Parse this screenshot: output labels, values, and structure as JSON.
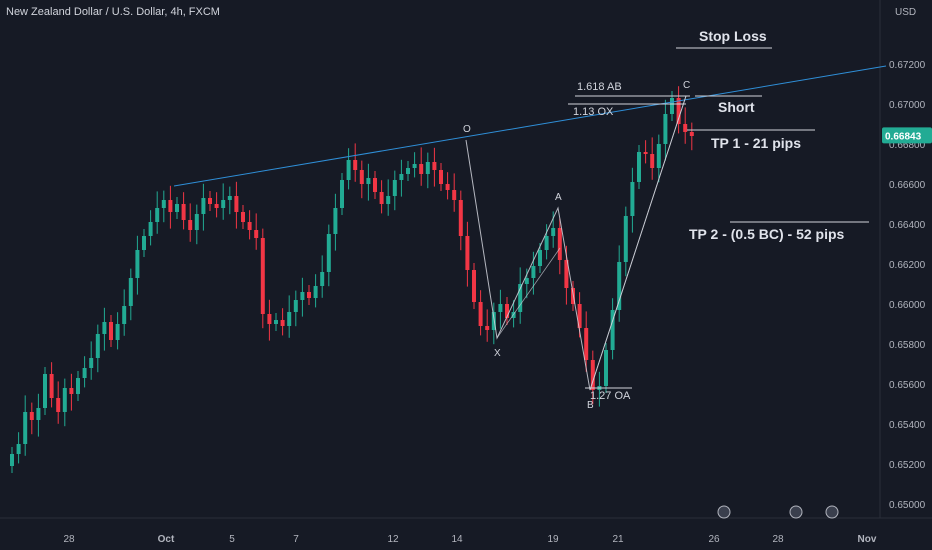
{
  "header": {
    "title": "New Zealand Dollar / U.S. Dollar, 4h, FXCM",
    "currency": "USD"
  },
  "colors": {
    "background": "#161a25",
    "up": "#22ab94",
    "down": "#f23645",
    "trendline": "#2962ff",
    "pattern": "#d1d4dc",
    "price_badge": "#22ab94",
    "text": "#d1d4dc"
  },
  "chart_data": {
    "type": "candlestick",
    "symbol": "NZD/USD",
    "timeframe": "4h",
    "ylim": [
      0.6496,
      0.6742
    ],
    "y_ticks": [
      "0.67200",
      "0.67000",
      "0.66800",
      "0.66600",
      "0.66400",
      "0.66200",
      "0.66000",
      "0.65800",
      "0.65600",
      "0.65400",
      "0.65200",
      "0.65000"
    ],
    "y_tick_values": [
      0.672,
      0.67,
      0.668,
      0.666,
      0.664,
      0.662,
      0.66,
      0.658,
      0.656,
      0.654,
      0.652,
      0.65
    ],
    "x_ticks": [
      "28",
      "Oct",
      "5",
      "7",
      "12",
      "14",
      "19",
      "21",
      "26",
      "28",
      "Nov"
    ],
    "last_price": "0.66843",
    "last_price_value": 0.66843,
    "closes": [
      0.6525,
      0.653,
      0.6546,
      0.6542,
      0.6548,
      0.6565,
      0.6553,
      0.6546,
      0.6558,
      0.6555,
      0.6563,
      0.6568,
      0.6573,
      0.6585,
      0.6591,
      0.6582,
      0.659,
      0.6599,
      0.6613,
      0.6627,
      0.6634,
      0.6641,
      0.6648,
      0.6652,
      0.6646,
      0.665,
      0.6642,
      0.6637,
      0.6645,
      0.6653,
      0.665,
      0.6648,
      0.6652,
      0.6654,
      0.6646,
      0.6641,
      0.6637,
      0.6633,
      0.6595,
      0.659,
      0.6592,
      0.6589,
      0.6596,
      0.6602,
      0.6606,
      0.6603,
      0.6609,
      0.6616,
      0.6635,
      0.6648,
      0.6662,
      0.6672,
      0.6667,
      0.666,
      0.6663,
      0.6656,
      0.665,
      0.6654,
      0.6662,
      0.6665,
      0.6668,
      0.667,
      0.6665,
      0.6671,
      0.6667,
      0.666,
      0.6657,
      0.6652,
      0.6634,
      0.6617,
      0.6601,
      0.6589,
      0.6587,
      0.6596,
      0.66,
      0.6593,
      0.6596,
      0.661,
      0.6613,
      0.6619,
      0.6627,
      0.6634,
      0.6638,
      0.6622,
      0.6608,
      0.66,
      0.6588,
      0.6572,
      0.6557,
      0.6559,
      0.6577,
      0.6597,
      0.6621,
      0.6644,
      0.6661,
      0.6676,
      0.6675,
      0.6668,
      0.668,
      0.6695,
      0.6703,
      0.669,
      0.6686,
      0.6684
    ],
    "pattern": {
      "type": "harmonic XABCD",
      "points": [
        {
          "label": "O",
          "value": 0.6682
        },
        {
          "label": "X",
          "value": 0.6583
        },
        {
          "label": "A",
          "value": 0.6648
        },
        {
          "label": "B",
          "value": 0.6557
        },
        {
          "label": "C",
          "value": 0.6704
        }
      ]
    },
    "trendline": [
      0.6659,
      0.6719
    ],
    "levels": [
      {
        "label": "1.618 AB",
        "value": 0.6704
      },
      {
        "label": "1.13 OX",
        "value": 0.67
      },
      {
        "label": "1.27 OA",
        "value": 0.6558
      }
    ],
    "annotations": [
      {
        "text": "Stop Loss",
        "value": 0.6708
      },
      {
        "text": "Short",
        "value": 0.6685
      },
      {
        "text": "TP 1 - 21 pips",
        "value": 0.6663
      },
      {
        "text": "TP 2 - (0.5 BC) - 52 pips",
        "value": 0.6632
      }
    ],
    "grid": false
  }
}
